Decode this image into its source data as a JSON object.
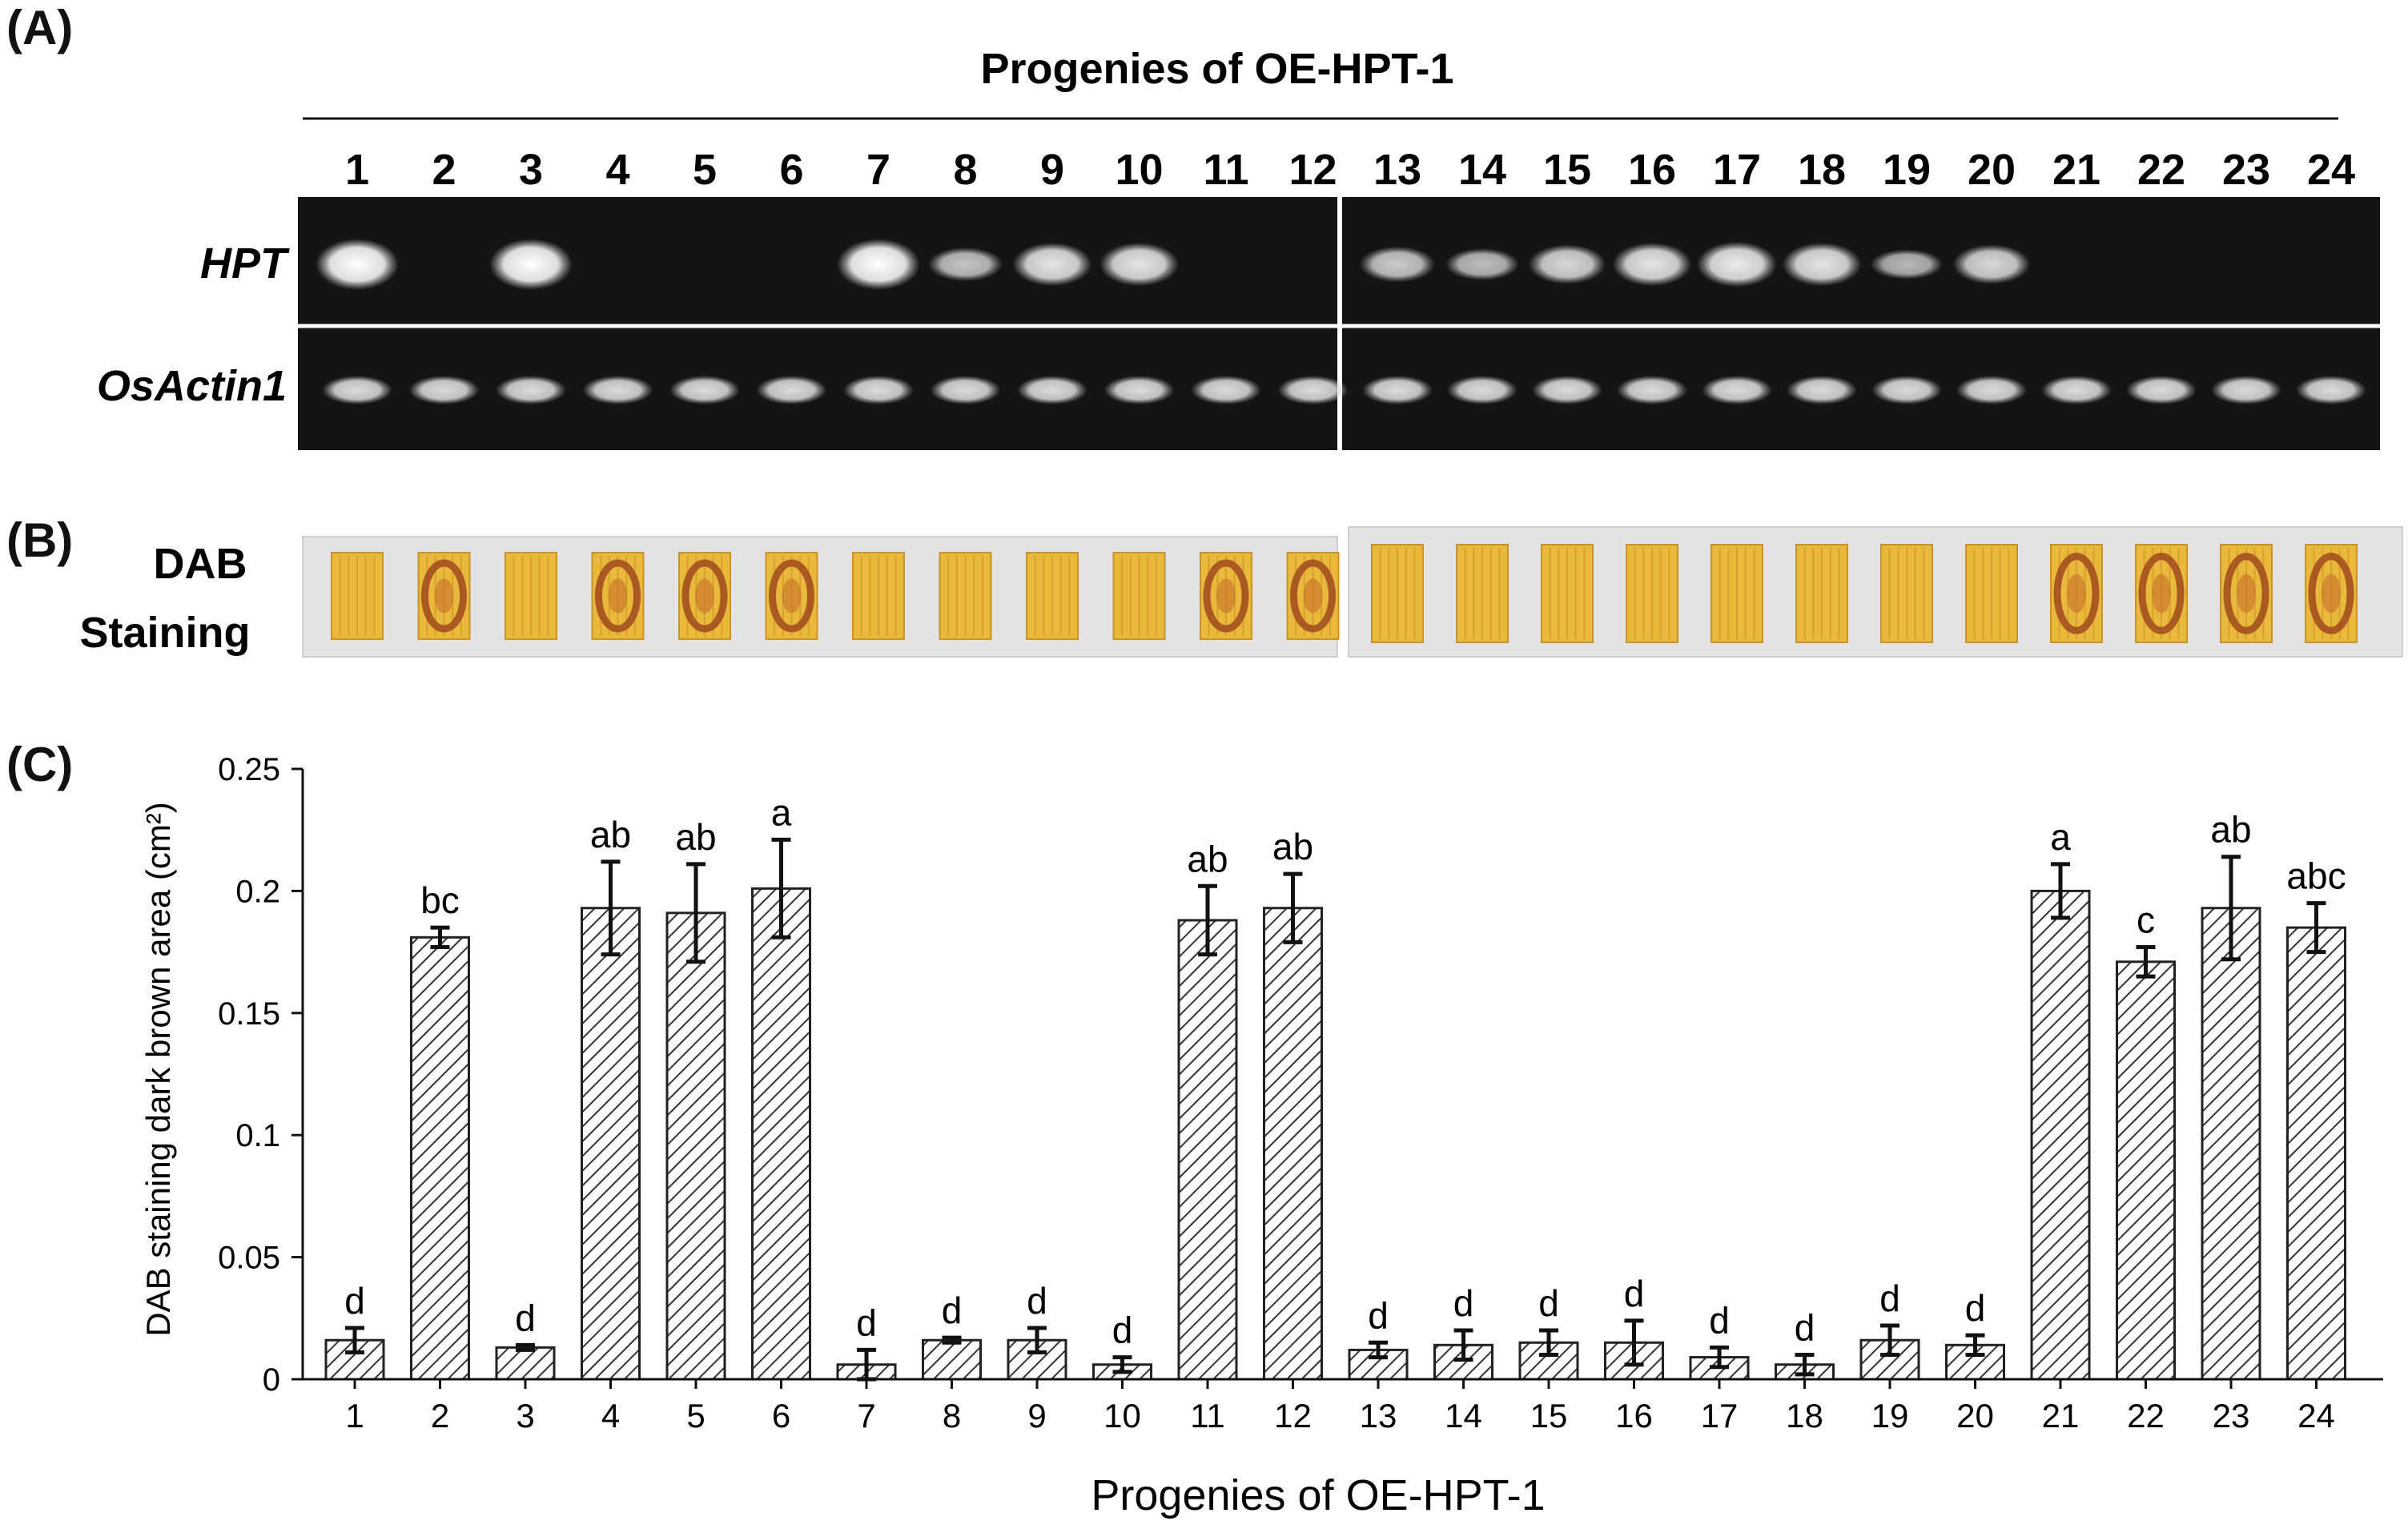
{
  "panels": {
    "a_label": "(A)",
    "b_label": "(B)",
    "c_label": "(C)"
  },
  "gel": {
    "title": "Progenies of OE-HPT-1",
    "lane_labels": [
      "1",
      "2",
      "3",
      "4",
      "5",
      "6",
      "7",
      "8",
      "9",
      "10",
      "11",
      "12",
      "13",
      "14",
      "15",
      "16",
      "17",
      "18",
      "19",
      "20",
      "21",
      "22",
      "23",
      "24"
    ],
    "row_labels": [
      "HPT",
      "OsActin1"
    ],
    "hpt_band_intensity": [
      1.0,
      0,
      1.0,
      0,
      0,
      0,
      1.0,
      0.55,
      0.8,
      0.8,
      0,
      0,
      0.6,
      0.5,
      0.7,
      0.8,
      0.85,
      0.8,
      0.45,
      0.7,
      0,
      0,
      0,
      0
    ],
    "actin_band_intensity": [
      0.85,
      0.85,
      0.85,
      0.85,
      0.85,
      0.85,
      0.85,
      0.85,
      0.85,
      0.85,
      0.85,
      0.85,
      0.85,
      0.85,
      0.85,
      0.85,
      0.85,
      0.85,
      0.85,
      0.85,
      0.85,
      0.85,
      0.85,
      0.85
    ]
  },
  "staining": {
    "label_line1": "DAB",
    "label_line2": "Staining",
    "dark_brown_lanes": [
      2,
      4,
      5,
      6,
      11,
      12,
      21,
      22,
      23,
      24
    ]
  },
  "colors": {
    "gel_bg": "#141414",
    "band": "#f4f4f4",
    "strip_bg": "#e3e3e3",
    "leaf_yellow": "#e8b93a",
    "leaf_brown": "#a04a1e",
    "bar_hatch": "#333333"
  },
  "chart_data": {
    "type": "bar",
    "categories": [
      "1",
      "2",
      "3",
      "4",
      "5",
      "6",
      "7",
      "8",
      "9",
      "10",
      "11",
      "12",
      "13",
      "14",
      "15",
      "16",
      "17",
      "18",
      "19",
      "20",
      "21",
      "22",
      "23",
      "24"
    ],
    "values": [
      0.016,
      0.181,
      0.013,
      0.193,
      0.191,
      0.201,
      0.006,
      0.016,
      0.016,
      0.006,
      0.188,
      0.193,
      0.012,
      0.014,
      0.015,
      0.015,
      0.009,
      0.006,
      0.016,
      0.014,
      0.2,
      0.171,
      0.193,
      0.185
    ],
    "errors": [
      0.005,
      0.004,
      0.001,
      0.019,
      0.02,
      0.02,
      0.006,
      0.001,
      0.005,
      0.003,
      0.014,
      0.014,
      0.003,
      0.006,
      0.005,
      0.009,
      0.004,
      0.004,
      0.006,
      0.004,
      0.011,
      0.006,
      0.021,
      0.01
    ],
    "letters": [
      "d",
      "bc",
      "d",
      "ab",
      "ab",
      "a",
      "d",
      "d",
      "d",
      "d",
      "ab",
      "ab",
      "d",
      "d",
      "d",
      "d",
      "d",
      "d",
      "d",
      "d",
      "a",
      "c",
      "ab",
      "abc"
    ],
    "xlabel": "Progenies of OE-HPT-1",
    "ylabel": "DAB staining dark brown area (cm²)",
    "ylim": [
      0,
      0.25
    ],
    "yticks": [
      0,
      0.05,
      0.1,
      0.15,
      0.2,
      0.25
    ],
    "ytick_labels": [
      "0",
      "0.05",
      "0.1",
      "0.15",
      "0.2",
      "0.25"
    ],
    "grid": false
  }
}
